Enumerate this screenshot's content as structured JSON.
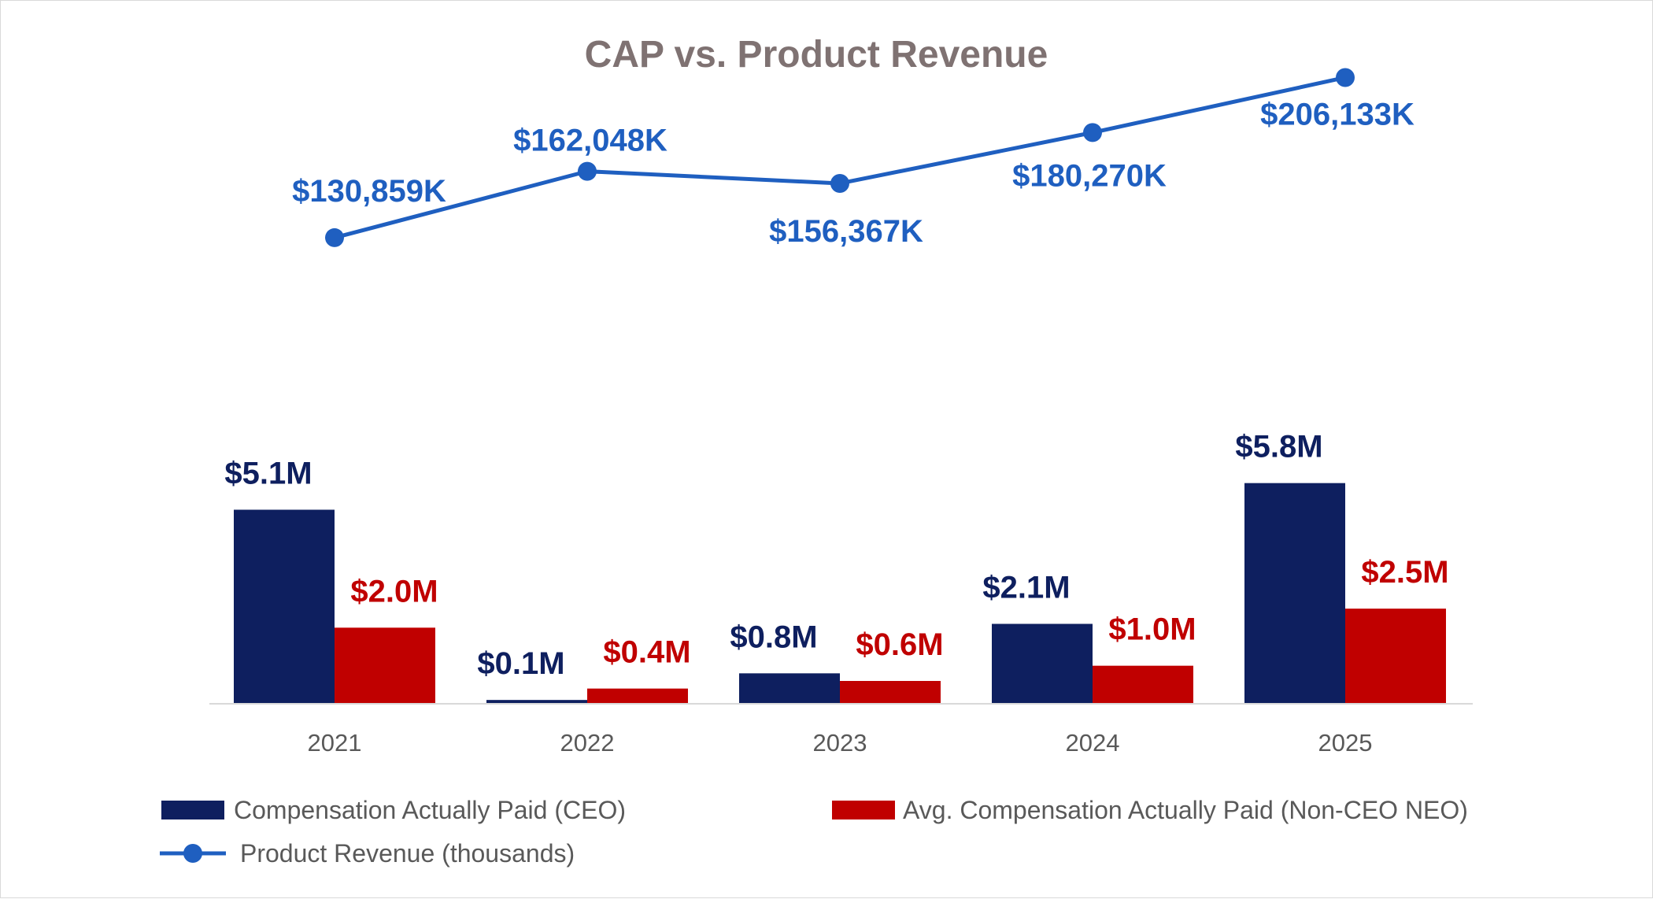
{
  "chart_data": {
    "type": "bar",
    "title": "CAP vs. Product Revenue",
    "categories": [
      "2021",
      "2022",
      "2023",
      "2024",
      "2025"
    ],
    "series": [
      {
        "name": "Compensation Actually Paid (CEO)",
        "kind": "bar",
        "color": "#0e1f5f",
        "label_color": "#0e1f5f",
        "values": [
          5.1,
          0.1,
          0.8,
          2.1,
          5.8
        ],
        "labels": [
          "$5.1M",
          "$0.1M",
          "$0.8M",
          "$2.1M",
          "$5.8M"
        ]
      },
      {
        "name": "Avg. Compensation Actually Paid (Non-CEO NEO)",
        "kind": "bar",
        "color": "#c00000",
        "label_color": "#c00000",
        "values": [
          2.0,
          0.4,
          0.6,
          1.0,
          2.5
        ],
        "labels": [
          "$2.0M",
          "$0.4M",
          "$0.6M",
          "$1.0M",
          "$2.5M"
        ]
      },
      {
        "name": "Product Revenue (thousands)",
        "kind": "line",
        "color": "#1f5fc0",
        "label_color": "#1f5fc0",
        "values": [
          130859,
          162048,
          156367,
          180270,
          206133
        ],
        "labels": [
          "$130,859K",
          "$162,048K",
          "$156,367K",
          "$180,270K",
          "$206,133K"
        ]
      }
    ],
    "bar_axis": {
      "unit": "$M",
      "range": [
        0,
        6.0
      ]
    },
    "line_axis": {
      "unit": "$K",
      "range": [
        -150000,
        220000
      ]
    },
    "xlabel": "",
    "ylabel": "",
    "grid": false,
    "legend_position": "bottom",
    "title_color": "#7f7272"
  }
}
